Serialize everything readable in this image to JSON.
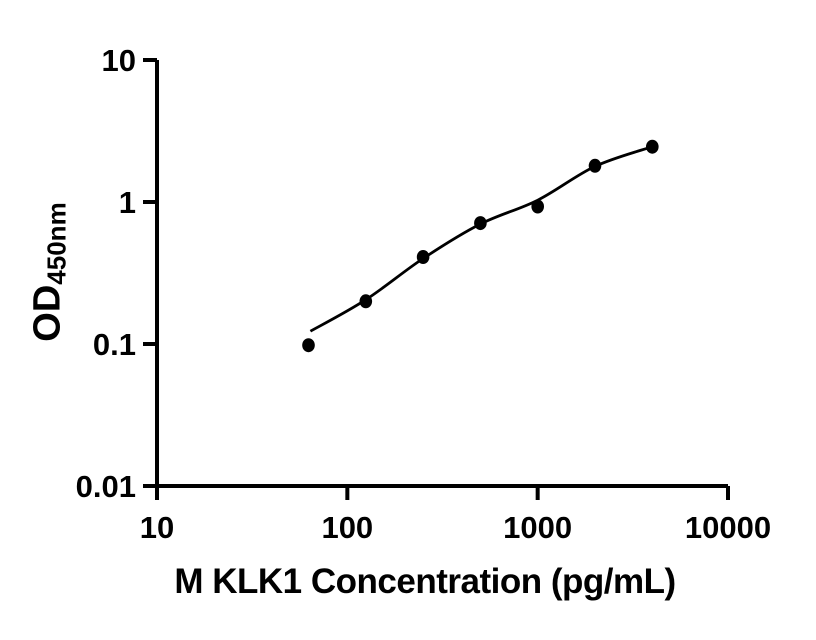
{
  "figure": {
    "background": "#ffffff"
  },
  "chart_data": {
    "type": "scatter",
    "title": "",
    "xlabel": "M KLK1 Concentration (pg/mL)",
    "ylabel_main": "OD",
    "ylabel_sub": "450nm",
    "x_scale": "log10",
    "y_scale": "log10",
    "xlim": [
      10,
      10000
    ],
    "ylim": [
      0.01,
      10
    ],
    "grid": false,
    "legend": "none",
    "x_ticks": {
      "values": [
        10,
        100,
        1000,
        10000
      ],
      "labels": [
        "10",
        "100",
        "1000",
        "10000"
      ]
    },
    "y_ticks": {
      "values": [
        0.01,
        0.1,
        1,
        10
      ],
      "labels": [
        "0.01",
        "0.1",
        "1",
        "10"
      ]
    },
    "series": [
      {
        "name": "standard-points",
        "type": "scatter",
        "marker": "filled-circle",
        "x": [
          62.5,
          125,
          250,
          500,
          1000,
          2000,
          4000
        ],
        "y": [
          0.098,
          0.2,
          0.41,
          0.71,
          0.93,
          1.8,
          2.45
        ]
      },
      {
        "name": "fit-curve",
        "type": "line",
        "x": [
          64,
          125,
          250,
          500,
          1000,
          2000,
          4000
        ],
        "y": [
          0.123,
          0.205,
          0.4,
          0.7,
          1.03,
          1.78,
          2.45
        ]
      }
    ],
    "colors": {
      "marker": "#000000",
      "line": "#000000",
      "axis": "#000000",
      "text": "#000000",
      "background": "#ffffff"
    }
  }
}
